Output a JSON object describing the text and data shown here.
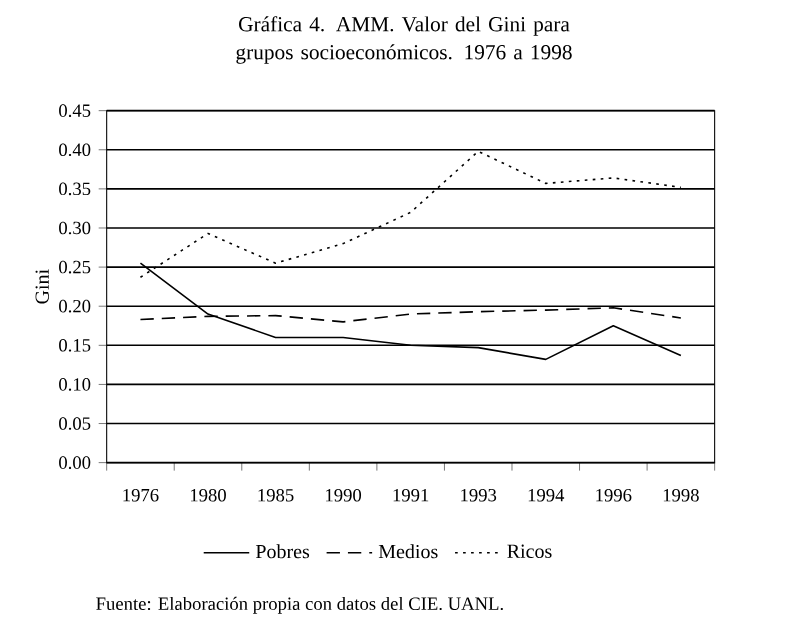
{
  "chart_data": {
    "type": "line",
    "title": "Gráfica 4. AMM. Valor del Gini para grupos socioeconómicos. 1976 a 1998",
    "ylabel": "Gini",
    "categories": [
      "1976",
      "1980",
      "1985",
      "1990",
      "1991",
      "1993",
      "1994",
      "1996",
      "1998"
    ],
    "series": [
      {
        "name": "Pobres",
        "color": "#000000",
        "line_style": "solid",
        "values": [
          0.255,
          0.19,
          0.16,
          0.16,
          0.15,
          0.147,
          0.132,
          0.175,
          0.137
        ]
      },
      {
        "name": "Medios",
        "color": "#000000",
        "line_style": "dashed",
        "values": [
          0.183,
          0.187,
          0.188,
          0.18,
          0.19,
          0.193,
          0.195,
          0.198,
          0.185
        ]
      },
      {
        "name": "Ricos",
        "color": "#000000",
        "line_style": "dotted",
        "values": [
          0.237,
          0.293,
          0.255,
          0.28,
          0.32,
          0.398,
          0.357,
          0.364,
          0.352
        ]
      }
    ],
    "ylim": [
      0,
      0.45
    ],
    "yticks": [
      {
        "value": 0,
        "label": "0.00"
      },
      {
        "value": 0.05,
        "label": "0.05"
      },
      {
        "value": 0.1,
        "label": "0.10"
      },
      {
        "value": 0.15,
        "label": "0.15"
      },
      {
        "value": 0.2,
        "label": "0.20"
      },
      {
        "value": 0.25,
        "label": "0.25"
      },
      {
        "value": 0.3,
        "label": "0.30"
      },
      {
        "value": 0.35,
        "label": "0.35"
      },
      {
        "value": 0.4,
        "label": "0.40"
      },
      {
        "value": 0.45,
        "label": "0.45"
      }
    ],
    "grid": "y",
    "legend": "bottom",
    "marker": "none",
    "annotations": [
      "Fuente: Elaboración propia con datos del CIE. UANL."
    ]
  }
}
